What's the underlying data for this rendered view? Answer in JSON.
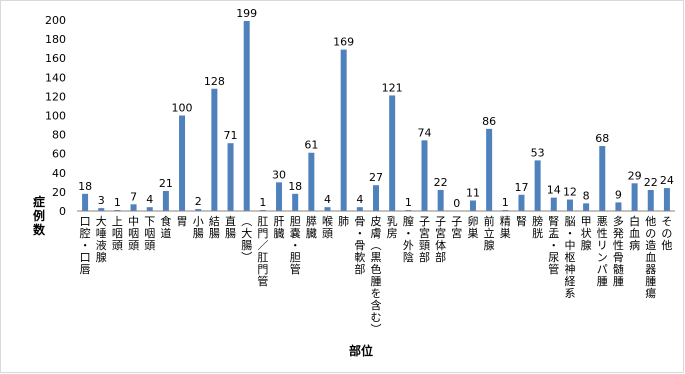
{
  "chart_data": {
    "type": "bar",
    "xlabel": "部位",
    "ylabel": "症例数",
    "ylim": [
      0,
      200
    ],
    "yticks": [
      0,
      20,
      40,
      60,
      80,
      100,
      120,
      140,
      160,
      180,
      200
    ],
    "grid": false,
    "legend": "none",
    "bar_color": "#4f81bd",
    "categories": [
      "口腔・口唇",
      "大唾液腺",
      "上咽頭",
      "中咽頭",
      "下咽頭",
      "食道",
      "胃",
      "小腸",
      "結腸",
      "直腸",
      "（大腸）",
      "肛門／肛門管",
      "肝臓",
      "胆嚢・胆管",
      "膵臓",
      "喉頭",
      "肺",
      "骨・骨軟部",
      "皮膚（黒色腫を含む）",
      "乳房",
      "膣・外陰",
      "子宮頸部",
      "子宮体部",
      "子宮",
      "卵巣",
      "前立腺",
      "精巣",
      "腎",
      "膀胱",
      "腎盂・尿管",
      "脳・中枢神経系",
      "甲状腺",
      "悪性リンパ腫",
      "多発性骨髄腫",
      "白血病",
      "他の造血器腫瘍",
      "その他"
    ],
    "values": [
      18,
      3,
      1,
      7,
      4,
      21,
      100,
      2,
      128,
      71,
      199,
      1,
      30,
      18,
      61,
      4,
      169,
      4,
      27,
      121,
      1,
      74,
      22,
      0,
      11,
      86,
      1,
      17,
      53,
      14,
      12,
      8,
      68,
      9,
      29,
      22,
      24
    ]
  }
}
